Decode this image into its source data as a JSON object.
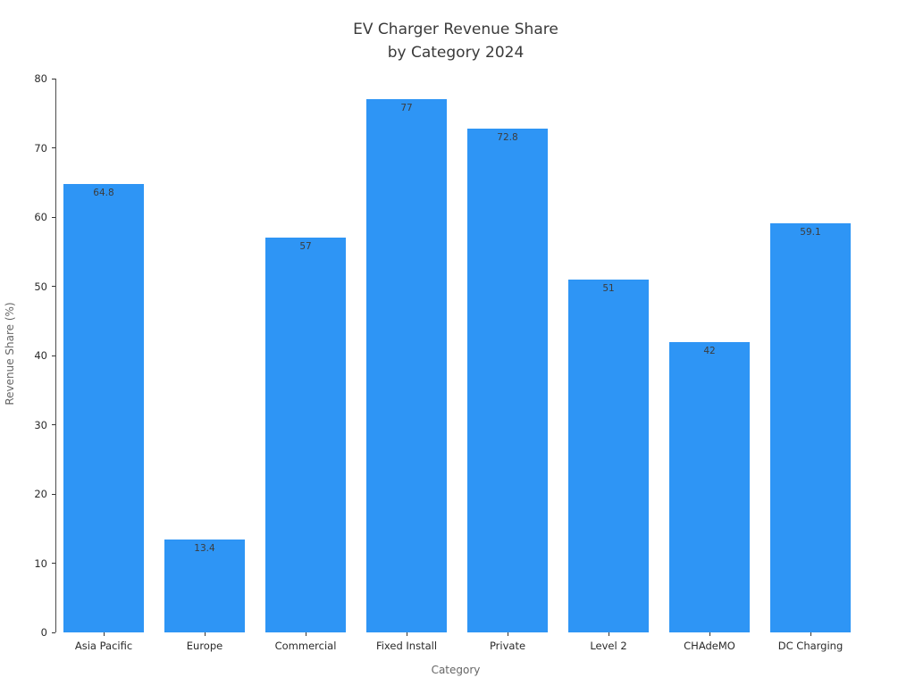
{
  "title": {
    "line1": "EV Charger Revenue Share",
    "line2": "by Category 2024"
  },
  "chart_data": {
    "type": "bar",
    "title": "EV Charger Revenue Share by Category 2024",
    "categories": [
      "Asia Pacific",
      "Europe",
      "Commercial",
      "Fixed Install",
      "Private",
      "Level 2",
      "CHAdeMO",
      "DC Charging"
    ],
    "values": [
      64.8,
      13.4,
      57,
      77,
      72.8,
      51,
      42,
      59.1
    ],
    "value_labels": [
      "64.8",
      "13.4",
      "57",
      "77",
      "72.8",
      "51",
      "42",
      "59.1"
    ],
    "xlabel": "Category",
    "ylabel": "Revenue Share (%)",
    "ylim": [
      0,
      80
    ],
    "yticks": [
      0,
      10,
      20,
      30,
      40,
      50,
      60,
      70,
      80
    ],
    "grid": false,
    "legend": null,
    "bar_color": "#2E95F5",
    "text_color": "#2b2b2b",
    "axis_label_color": "#666666"
  }
}
